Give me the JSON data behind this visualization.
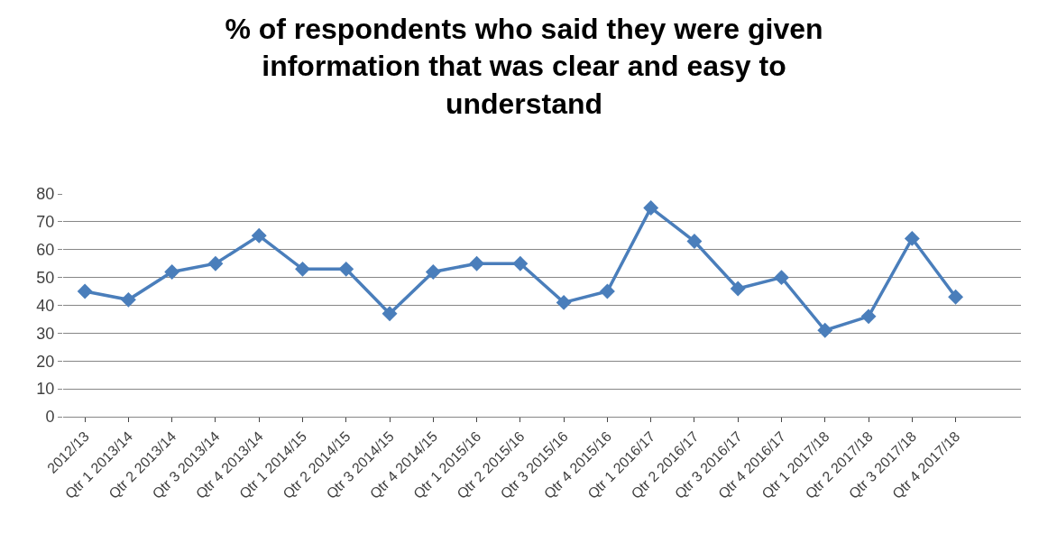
{
  "chart_data": {
    "type": "line",
    "title": "% of respondents who said they were given information that was clear and easy to understand",
    "categories": [
      "2012/13",
      "Qtr 1 2013/14",
      "Qtr 2 2013/14",
      "Qtr 3 2013/14",
      "Qtr 4 2013/14",
      "Qtr 1 2014/15",
      "Qtr 2 2014/15",
      "Qtr 3 2014/15",
      "Qtr 4 2014/15",
      "Qtr 1 2015/16",
      "Qtr 2 2015/16",
      "Qtr 3 2015/16",
      "Qtr 4 2015/16",
      "Qtr 1 2016/17",
      "Qtr 2 2016/17",
      "Qtr 3 2016/17",
      "Qtr 4 2016/17",
      "Qtr 1 2017/18",
      "Qtr 2 2017/18",
      "Qtr 3 2017/18",
      "Qtr 4 2017/18",
      null
    ],
    "series": [
      {
        "color": "#4a7ebb",
        "values": [
          45,
          42,
          52,
          55,
          65,
          53,
          53,
          37,
          52,
          55,
          55,
          41,
          45,
          75,
          63,
          46,
          50,
          31,
          36,
          64,
          43,
          null
        ]
      }
    ],
    "ylim": [
      0,
      80
    ],
    "yticks": [
      0,
      10,
      20,
      30,
      40,
      50,
      60,
      70,
      80
    ],
    "grid": "y",
    "marker": "diamond",
    "line_style": "solid"
  }
}
